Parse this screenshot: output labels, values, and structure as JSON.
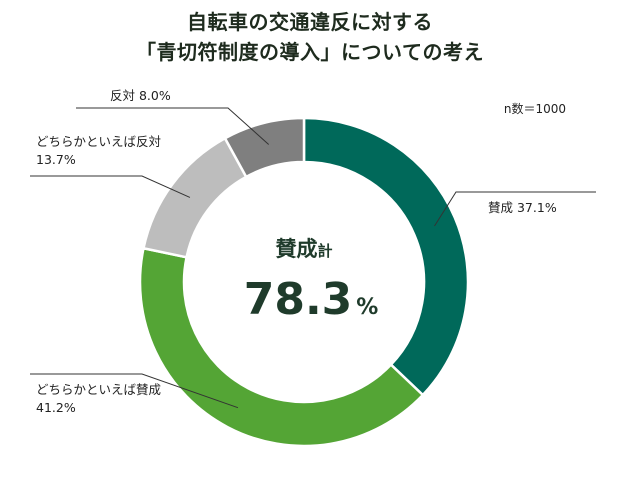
{
  "chart_data": {
    "type": "pie",
    "title_line1": "自転車の交通違反に対する",
    "title_line2": "「青切符制度の導入」についての考え",
    "note": "n数＝1000",
    "center": {
      "label_main": "賛成",
      "label_suffix": "計",
      "value": "78.3",
      "unit": "%"
    },
    "slices": [
      {
        "label": "賛成",
        "value": 37.1,
        "value_text": "37.1%",
        "color": "#00695a"
      },
      {
        "label": "どちらかといえば賛成",
        "value": 41.2,
        "value_text": "41.2%",
        "color": "#54a535"
      },
      {
        "label": "どちらかといえば反対",
        "value": 13.7,
        "value_text": "13.7%",
        "color": "#bdbdbd"
      },
      {
        "label": "反対",
        "value": 8.0,
        "value_text": "8.0%",
        "color": "#7f7f7f"
      }
    ]
  }
}
